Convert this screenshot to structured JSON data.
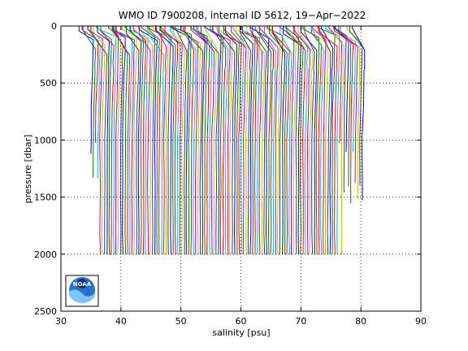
{
  "chart_data": {
    "type": "line",
    "title": "WMO ID 7900208, internal ID 5612, 19−Apr−2022",
    "xlabel": "salinity [psu]",
    "ylabel": "pressure [dbar]",
    "xlim": [
      30,
      90
    ],
    "ylim": [
      0,
      2500
    ],
    "y_reversed": true,
    "x_ticks": [
      "30",
      "40",
      "50",
      "60",
      "70",
      "80",
      "90"
    ],
    "y_ticks": [
      "0",
      "500",
      "1000",
      "1500",
      "2000",
      "2500"
    ],
    "grid": "dotted",
    "profiles": {
      "count": 120,
      "first_deep_salinity": 35.0,
      "offset_step": 0.38,
      "max_pressure": 2000,
      "colors": [
        "#0000ff",
        "#008000",
        "#ff0000",
        "#00bfbf",
        "#bf00bf",
        "#bfbf00",
        "#404040"
      ]
    },
    "logo": {
      "text": "NOAA"
    }
  }
}
